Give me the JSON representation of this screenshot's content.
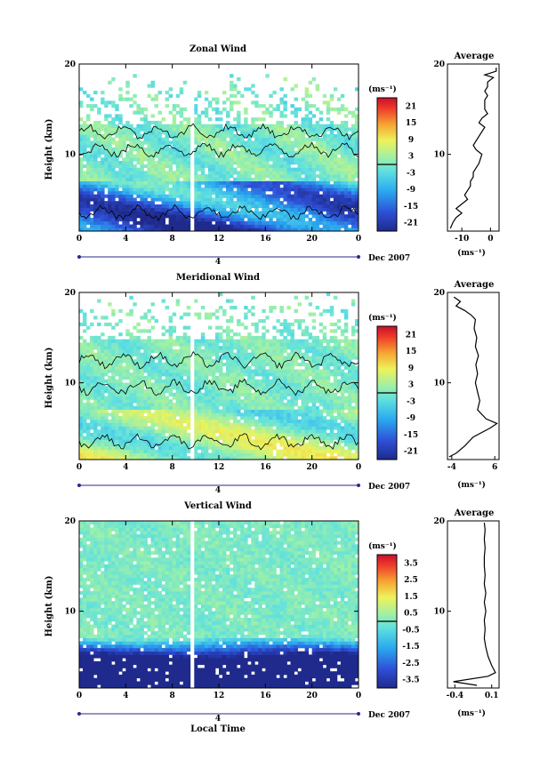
{
  "chart_data": [
    {
      "type": "heatmap",
      "title": "Zonal Wind",
      "ylabel": "Height (km)",
      "xticks": [
        "0",
        "4",
        "8",
        "12",
        "16",
        "20",
        "0"
      ],
      "yticks": [
        "20",
        "10"
      ],
      "xlim": [
        0,
        24
      ],
      "ylim": [
        1.5,
        20
      ],
      "date_label": "4",
      "date_suffix": "Dec 2007",
      "colorbar": {
        "unit": "(ms⁻¹)",
        "ticks": [
          "21",
          "15",
          "9",
          "3",
          "-3",
          "-9",
          "-15",
          "-21"
        ],
        "range": [
          -24,
          24
        ]
      },
      "field": {
        "base": -8,
        "gain_low": 9,
        "high_level": 0,
        "gap_start": 13.5,
        "contour_km": [
          3.5,
          10.5,
          12.5
        ]
      },
      "average": {
        "title": "Average",
        "xlabel": "(ms⁻¹)",
        "xticks": [
          "-10",
          "0"
        ],
        "xlim": [
          -15,
          3
        ],
        "profile": [
          [
            1.8,
            -14
          ],
          [
            2.5,
            -13
          ],
          [
            3,
            -12
          ],
          [
            3.5,
            -10
          ],
          [
            4,
            -12
          ],
          [
            4.5,
            -10
          ],
          [
            5,
            -8
          ],
          [
            5.5,
            -9
          ],
          [
            6,
            -8
          ],
          [
            6.5,
            -7
          ],
          [
            7,
            -7
          ],
          [
            7.5,
            -6
          ],
          [
            8,
            -6
          ],
          [
            9,
            -4
          ],
          [
            10,
            -3
          ],
          [
            10.5,
            -5
          ],
          [
            11,
            -6
          ],
          [
            12,
            -4
          ],
          [
            13,
            -2
          ],
          [
            13.5,
            -4
          ],
          [
            14,
            -3
          ],
          [
            14.5,
            -1
          ],
          [
            15,
            -2
          ],
          [
            16,
            -2
          ],
          [
            16.5,
            -1
          ],
          [
            17,
            -2
          ],
          [
            17.5,
            -1
          ],
          [
            18,
            -1
          ],
          [
            18.5,
            1
          ],
          [
            18.8,
            -2
          ],
          [
            19.2,
            2
          ],
          [
            19.6,
            2
          ]
        ]
      }
    },
    {
      "type": "heatmap",
      "title": "Meridional Wind",
      "ylabel": "Height (km)",
      "xticks": [
        "0",
        "4",
        "8",
        "12",
        "16",
        "20",
        "0"
      ],
      "yticks": [
        "20",
        "10"
      ],
      "xlim": [
        0,
        24
      ],
      "ylim": [
        1.5,
        20
      ],
      "date_label": "4",
      "date_suffix": "Dec 2007",
      "colorbar": {
        "unit": "(ms⁻¹)",
        "ticks": [
          "21",
          "15",
          "9",
          "3",
          "-3",
          "-9",
          "-15",
          "-21"
        ],
        "range": [
          -24,
          24
        ]
      },
      "field": {
        "base": 1,
        "gain_low": 6,
        "high_level": 0,
        "gap_start": 15,
        "contour_km": [
          3.5,
          9.5,
          12.5
        ]
      },
      "average": {
        "title": "Average",
        "xlabel": "(ms⁻¹)",
        "xticks": [
          "-4",
          "6"
        ],
        "xlim": [
          -5,
          7
        ],
        "profile": [
          [
            1.8,
            -4.6
          ],
          [
            2.2,
            -3
          ],
          [
            3,
            -1
          ],
          [
            4,
            1
          ],
          [
            5,
            5
          ],
          [
            5.5,
            6.5
          ],
          [
            6,
            4
          ],
          [
            7,
            2
          ],
          [
            8,
            2.5
          ],
          [
            9,
            2
          ],
          [
            10,
            1.5
          ],
          [
            11,
            2
          ],
          [
            12,
            1.6
          ],
          [
            13,
            2.2
          ],
          [
            14,
            1.5
          ],
          [
            15,
            1.8
          ],
          [
            16,
            1.2
          ],
          [
            17,
            1.5
          ],
          [
            17.5,
            0.5
          ],
          [
            18,
            -1
          ],
          [
            18.5,
            -3
          ],
          [
            19,
            -2
          ],
          [
            19.5,
            -3.5
          ]
        ]
      }
    },
    {
      "type": "heatmap",
      "title": "Vertical Wind",
      "ylabel": "Height (km)",
      "xlabel": "Local Time",
      "xticks": [
        "0",
        "4",
        "8",
        "12",
        "16",
        "20",
        "0"
      ],
      "yticks": [
        "20",
        "10"
      ],
      "xlim": [
        0,
        24
      ],
      "ylim": [
        1.5,
        20
      ],
      "date_label": "4",
      "date_suffix": "Dec 2007",
      "colorbar": {
        "unit": "(ms⁻¹)",
        "ticks": [
          "3.5",
          "2.5",
          "1.5",
          "0.5",
          "-0.5",
          "-1.5",
          "-2.5",
          "-3.5"
        ],
        "range": [
          -4,
          4
        ]
      },
      "field": {
        "base": -0.3,
        "gain_low": 0.4,
        "high_level": 0,
        "gap_start": 21,
        "contour_km": []
      },
      "average": {
        "title": "Average",
        "xlabel": "(ms⁻¹)",
        "xticks": [
          "-0.4",
          "0.1"
        ],
        "xlim": [
          -0.5,
          0.2
        ],
        "profile": [
          [
            1.8,
            -0.1
          ],
          [
            2.2,
            -0.42
          ],
          [
            2.8,
            0.05
          ],
          [
            3.2,
            0.15
          ],
          [
            4,
            0.1
          ],
          [
            5,
            0.05
          ],
          [
            6,
            0.02
          ],
          [
            7,
            0.0
          ],
          [
            8,
            0.01
          ],
          [
            9,
            0.0
          ],
          [
            10,
            0.02
          ],
          [
            11,
            0.0
          ],
          [
            12,
            0.02
          ],
          [
            13,
            0.0
          ],
          [
            14,
            0.01
          ],
          [
            15,
            0.0
          ],
          [
            16,
            0.0
          ],
          [
            17,
            0.01
          ],
          [
            18,
            0.0
          ],
          [
            19,
            0.01
          ],
          [
            19.8,
            0.0
          ]
        ]
      }
    }
  ]
}
